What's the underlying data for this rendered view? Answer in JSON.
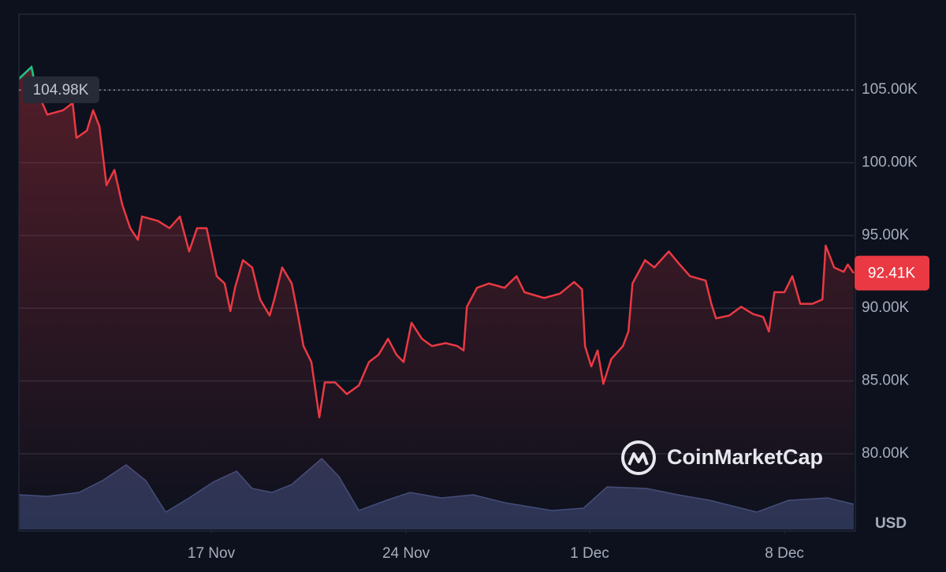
{
  "chart_data": {
    "type": "line",
    "currency": "USD",
    "watermark": "CoinMarketCap",
    "xlim": [
      0,
      30.6
    ],
    "xticks": [
      {
        "value": 7.05,
        "label": "17 Nov"
      },
      {
        "value": 14.19,
        "label": "24 Nov"
      },
      {
        "value": 20.92,
        "label": "1 Dec"
      },
      {
        "value": 28.06,
        "label": "8 Dec"
      }
    ],
    "ylim": [
      74800,
      110200
    ],
    "yticks": [
      {
        "value": 80000,
        "label": "80.00K"
      },
      {
        "value": 85000,
        "label": "85.00K"
      },
      {
        "value": 90000,
        "label": "90.00K"
      },
      {
        "value": 95000,
        "label": "95.00K"
      },
      {
        "value": 100000,
        "label": "100.00K"
      },
      {
        "value": 105000,
        "label": "105.00K"
      }
    ],
    "grid": true,
    "open_line": {
      "value": 104980,
      "label": "104.98K"
    },
    "last_price": {
      "value": 92410,
      "label": "92.41K"
    },
    "series": [
      {
        "color": "#ea3943",
        "above_open_color": "#16c784",
        "x": [
          0,
          0.46,
          0.61,
          1.04,
          1.62,
          1.97,
          2.11,
          2.49,
          2.72,
          2.95,
          3.21,
          3.5,
          3.79,
          4.08,
          4.36,
          4.51,
          5.09,
          5.52,
          5.9,
          6.24,
          6.53,
          6.88,
          7.25,
          7.54,
          7.75,
          7.92,
          8.21,
          8.55,
          8.84,
          9.19,
          9.36,
          9.65,
          10,
          10.23,
          10.43,
          10.72,
          11.01,
          11.21,
          11.59,
          12.02,
          12.46,
          12.83,
          13.18,
          13.53,
          13.84,
          14.1,
          14.39,
          14.77,
          15.14,
          15.64,
          16.07,
          16.3,
          16.42,
          16.79,
          17.23,
          17.8,
          18.24,
          18.53,
          19.25,
          19.83,
          20.35,
          20.64,
          20.75,
          20.98,
          21.21,
          21.42,
          21.71,
          22.14,
          22.34,
          22.49,
          22.95,
          23.29,
          23.82,
          24.22,
          24.6,
          25.17,
          25.38,
          25.55,
          26.04,
          26.47,
          26.91,
          27.28,
          27.49,
          27.69,
          28.06,
          28.35,
          28.64,
          29.08,
          29.45,
          29.57,
          29.88,
          30.23,
          30.38,
          30.6
        ],
        "values": [
          105760,
          106570,
          105200,
          103300,
          103600,
          104100,
          101700,
          102200,
          103600,
          102500,
          98450,
          99500,
          97100,
          95500,
          94700,
          96300,
          96000,
          95500,
          96300,
          93900,
          95500,
          95500,
          92200,
          91700,
          89800,
          91400,
          93300,
          92800,
          90600,
          89500,
          90600,
          92800,
          91700,
          89500,
          87400,
          86300,
          82500,
          84900,
          84900,
          84100,
          84700,
          86300,
          86800,
          87900,
          86800,
          86300,
          89000,
          87900,
          87400,
          87600,
          87400,
          87100,
          90100,
          91400,
          91700,
          91400,
          92200,
          91100,
          90700,
          91000,
          91800,
          91300,
          87400,
          86000,
          87100,
          84800,
          86500,
          87400,
          88400,
          91700,
          93300,
          92800,
          93900,
          93000,
          92200,
          91900,
          90300,
          89300,
          89500,
          90100,
          89600,
          89400,
          88400,
          91100,
          91100,
          92200,
          90300,
          90300,
          90600,
          94300,
          92800,
          92500,
          93000,
          92410
        ]
      }
    ],
    "volume": {
      "color": "#2b3454",
      "line_color": "#414e7a",
      "vlim": [
        0,
        100
      ],
      "x": [
        0,
        1.04,
        2.2,
        3.06,
        3.93,
        4.65,
        5.38,
        6.24,
        7.11,
        7.98,
        8.55,
        9.28,
        10,
        11.1,
        11.73,
        12.46,
        13.47,
        14.34,
        15.49,
        16.65,
        17.8,
        19.54,
        20.69,
        21.56,
        23.01,
        24.16,
        25.32,
        27.05,
        28.21,
        29.65,
        30.6
      ],
      "values": [
        44,
        42,
        47,
        62,
        82,
        62,
        22,
        40,
        60,
        74,
        52,
        47,
        57,
        90,
        67,
        24,
        37,
        47,
        40,
        44,
        34,
        24,
        27,
        54,
        52,
        44,
        37,
        22,
        37,
        40,
        32
      ]
    }
  }
}
